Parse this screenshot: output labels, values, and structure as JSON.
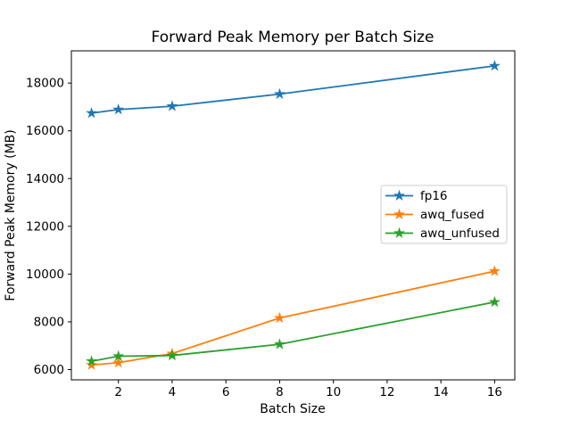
{
  "chart_data": {
    "type": "line",
    "title": "Forward Peak Memory per Batch Size",
    "xlabel": "Batch Size",
    "ylabel": "Forward Peak Memory (MB)",
    "x": [
      1,
      2,
      4,
      8,
      16
    ],
    "series": [
      {
        "name": "fp16",
        "color": "#1f77b4",
        "values": [
          16740,
          16890,
          17030,
          17540,
          18720
        ]
      },
      {
        "name": "awq_fused",
        "color": "#ff7f0e",
        "values": [
          6190,
          6290,
          6670,
          8160,
          10120
        ]
      },
      {
        "name": "awq_unfused",
        "color": "#2ca02c",
        "values": [
          6350,
          6560,
          6590,
          7060,
          8830
        ]
      }
    ],
    "marker": "star",
    "xticks": [
      2,
      4,
      6,
      8,
      10,
      12,
      14,
      16
    ],
    "yticks": [
      6000,
      8000,
      10000,
      12000,
      14000,
      16000,
      18000
    ],
    "xlim": [
      0.25,
      16.75
    ],
    "ylim": [
      5570,
      19350
    ],
    "grid": false,
    "legend_position": "center right",
    "axis_color": "#000000",
    "background_color": "#ffffff",
    "legend_border_color": "#cccccc"
  }
}
